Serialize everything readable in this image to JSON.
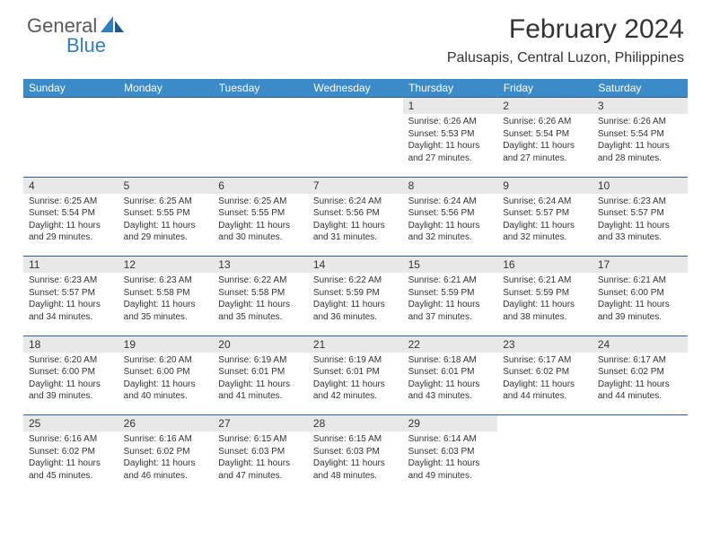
{
  "logo": {
    "text_general": "General",
    "text_blue": "Blue"
  },
  "header": {
    "month_title": "February 2024",
    "location": "Palusapis, Central Luzon, Philippines"
  },
  "day_headers": [
    "Sunday",
    "Monday",
    "Tuesday",
    "Wednesday",
    "Thursday",
    "Friday",
    "Saturday"
  ],
  "colors": {
    "header_bg": "#3b8bc9",
    "header_text": "#ffffff",
    "daynum_bg": "#e8e8e8",
    "rule": "#2f5f8f",
    "logo_gray": "#5a5a5a",
    "logo_blue": "#2f7fc1",
    "body_text": "#333333",
    "page_bg": "#ffffff"
  },
  "weeks": [
    [
      null,
      null,
      null,
      null,
      {
        "n": "1",
        "sunrise": "Sunrise: 6:26 AM",
        "sunset": "Sunset: 5:53 PM",
        "day1": "Daylight: 11 hours",
        "day2": "and 27 minutes."
      },
      {
        "n": "2",
        "sunrise": "Sunrise: 6:26 AM",
        "sunset": "Sunset: 5:54 PM",
        "day1": "Daylight: 11 hours",
        "day2": "and 27 minutes."
      },
      {
        "n": "3",
        "sunrise": "Sunrise: 6:26 AM",
        "sunset": "Sunset: 5:54 PM",
        "day1": "Daylight: 11 hours",
        "day2": "and 28 minutes."
      }
    ],
    [
      {
        "n": "4",
        "sunrise": "Sunrise: 6:25 AM",
        "sunset": "Sunset: 5:54 PM",
        "day1": "Daylight: 11 hours",
        "day2": "and 29 minutes."
      },
      {
        "n": "5",
        "sunrise": "Sunrise: 6:25 AM",
        "sunset": "Sunset: 5:55 PM",
        "day1": "Daylight: 11 hours",
        "day2": "and 29 minutes."
      },
      {
        "n": "6",
        "sunrise": "Sunrise: 6:25 AM",
        "sunset": "Sunset: 5:55 PM",
        "day1": "Daylight: 11 hours",
        "day2": "and 30 minutes."
      },
      {
        "n": "7",
        "sunrise": "Sunrise: 6:24 AM",
        "sunset": "Sunset: 5:56 PM",
        "day1": "Daylight: 11 hours",
        "day2": "and 31 minutes."
      },
      {
        "n": "8",
        "sunrise": "Sunrise: 6:24 AM",
        "sunset": "Sunset: 5:56 PM",
        "day1": "Daylight: 11 hours",
        "day2": "and 32 minutes."
      },
      {
        "n": "9",
        "sunrise": "Sunrise: 6:24 AM",
        "sunset": "Sunset: 5:57 PM",
        "day1": "Daylight: 11 hours",
        "day2": "and 32 minutes."
      },
      {
        "n": "10",
        "sunrise": "Sunrise: 6:23 AM",
        "sunset": "Sunset: 5:57 PM",
        "day1": "Daylight: 11 hours",
        "day2": "and 33 minutes."
      }
    ],
    [
      {
        "n": "11",
        "sunrise": "Sunrise: 6:23 AM",
        "sunset": "Sunset: 5:57 PM",
        "day1": "Daylight: 11 hours",
        "day2": "and 34 minutes."
      },
      {
        "n": "12",
        "sunrise": "Sunrise: 6:23 AM",
        "sunset": "Sunset: 5:58 PM",
        "day1": "Daylight: 11 hours",
        "day2": "and 35 minutes."
      },
      {
        "n": "13",
        "sunrise": "Sunrise: 6:22 AM",
        "sunset": "Sunset: 5:58 PM",
        "day1": "Daylight: 11 hours",
        "day2": "and 35 minutes."
      },
      {
        "n": "14",
        "sunrise": "Sunrise: 6:22 AM",
        "sunset": "Sunset: 5:59 PM",
        "day1": "Daylight: 11 hours",
        "day2": "and 36 minutes."
      },
      {
        "n": "15",
        "sunrise": "Sunrise: 6:21 AM",
        "sunset": "Sunset: 5:59 PM",
        "day1": "Daylight: 11 hours",
        "day2": "and 37 minutes."
      },
      {
        "n": "16",
        "sunrise": "Sunrise: 6:21 AM",
        "sunset": "Sunset: 5:59 PM",
        "day1": "Daylight: 11 hours",
        "day2": "and 38 minutes."
      },
      {
        "n": "17",
        "sunrise": "Sunrise: 6:21 AM",
        "sunset": "Sunset: 6:00 PM",
        "day1": "Daylight: 11 hours",
        "day2": "and 39 minutes."
      }
    ],
    [
      {
        "n": "18",
        "sunrise": "Sunrise: 6:20 AM",
        "sunset": "Sunset: 6:00 PM",
        "day1": "Daylight: 11 hours",
        "day2": "and 39 minutes."
      },
      {
        "n": "19",
        "sunrise": "Sunrise: 6:20 AM",
        "sunset": "Sunset: 6:00 PM",
        "day1": "Daylight: 11 hours",
        "day2": "and 40 minutes."
      },
      {
        "n": "20",
        "sunrise": "Sunrise: 6:19 AM",
        "sunset": "Sunset: 6:01 PM",
        "day1": "Daylight: 11 hours",
        "day2": "and 41 minutes."
      },
      {
        "n": "21",
        "sunrise": "Sunrise: 6:19 AM",
        "sunset": "Sunset: 6:01 PM",
        "day1": "Daylight: 11 hours",
        "day2": "and 42 minutes."
      },
      {
        "n": "22",
        "sunrise": "Sunrise: 6:18 AM",
        "sunset": "Sunset: 6:01 PM",
        "day1": "Daylight: 11 hours",
        "day2": "and 43 minutes."
      },
      {
        "n": "23",
        "sunrise": "Sunrise: 6:17 AM",
        "sunset": "Sunset: 6:02 PM",
        "day1": "Daylight: 11 hours",
        "day2": "and 44 minutes."
      },
      {
        "n": "24",
        "sunrise": "Sunrise: 6:17 AM",
        "sunset": "Sunset: 6:02 PM",
        "day1": "Daylight: 11 hours",
        "day2": "and 44 minutes."
      }
    ],
    [
      {
        "n": "25",
        "sunrise": "Sunrise: 6:16 AM",
        "sunset": "Sunset: 6:02 PM",
        "day1": "Daylight: 11 hours",
        "day2": "and 45 minutes."
      },
      {
        "n": "26",
        "sunrise": "Sunrise: 6:16 AM",
        "sunset": "Sunset: 6:02 PM",
        "day1": "Daylight: 11 hours",
        "day2": "and 46 minutes."
      },
      {
        "n": "27",
        "sunrise": "Sunrise: 6:15 AM",
        "sunset": "Sunset: 6:03 PM",
        "day1": "Daylight: 11 hours",
        "day2": "and 47 minutes."
      },
      {
        "n": "28",
        "sunrise": "Sunrise: 6:15 AM",
        "sunset": "Sunset: 6:03 PM",
        "day1": "Daylight: 11 hours",
        "day2": "and 48 minutes."
      },
      {
        "n": "29",
        "sunrise": "Sunrise: 6:14 AM",
        "sunset": "Sunset: 6:03 PM",
        "day1": "Daylight: 11 hours",
        "day2": "and 49 minutes."
      },
      null,
      null
    ]
  ]
}
